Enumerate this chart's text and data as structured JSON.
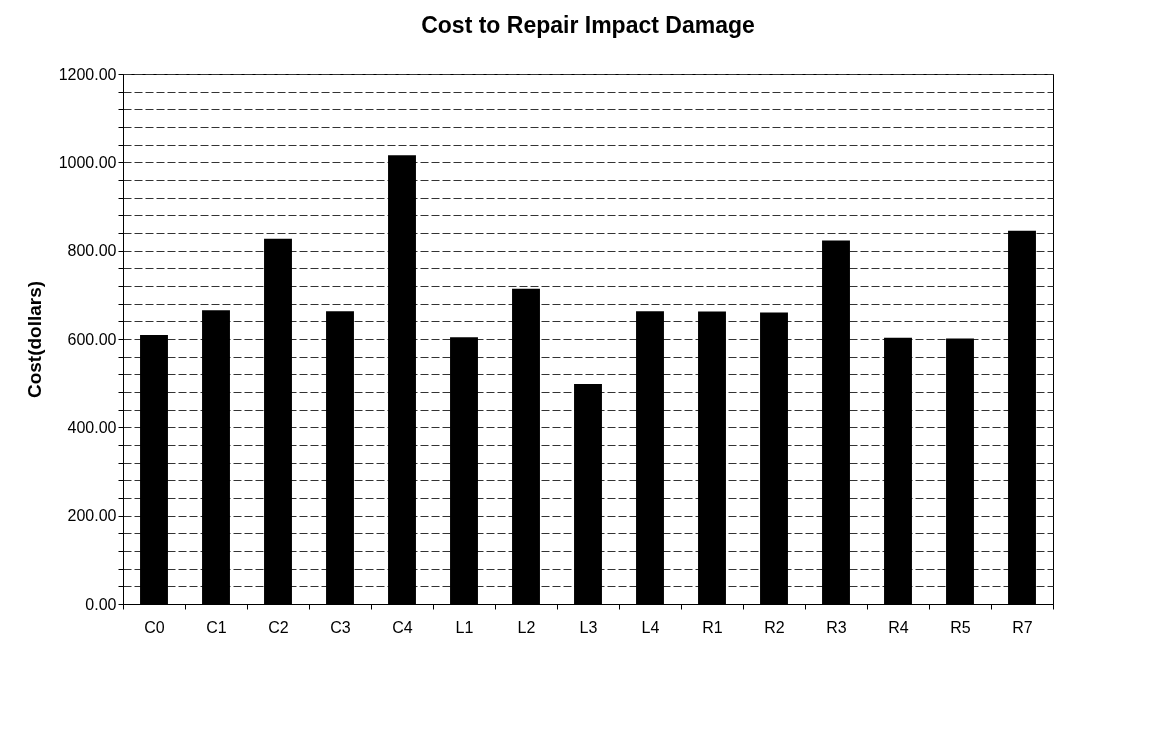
{
  "chart_data": {
    "type": "bar",
    "title": "Cost to Repair Impact Damage",
    "ylabel": "Cost(dollars)",
    "categories": [
      "C0",
      "C1",
      "C2",
      "C3",
      "C4",
      "L1",
      "L2",
      "L3",
      "L4",
      "R1",
      "R2",
      "R3",
      "R4",
      "R5",
      "R7"
    ],
    "values": [
      609,
      665,
      827,
      663,
      1016,
      604,
      714,
      498,
      663,
      662,
      660,
      823,
      603,
      601,
      845
    ],
    "color": "#000000",
    "ylim": [
      0,
      1200
    ],
    "yticks": [
      {
        "value": 0,
        "label": "0.00"
      },
      {
        "value": 40,
        "label": null
      },
      {
        "value": 80,
        "label": null
      },
      {
        "value": 120,
        "label": null
      },
      {
        "value": 160,
        "label": null
      },
      {
        "value": 200,
        "label": "200.00"
      },
      {
        "value": 240,
        "label": null
      },
      {
        "value": 280,
        "label": null
      },
      {
        "value": 320,
        "label": null
      },
      {
        "value": 360,
        "label": null
      },
      {
        "value": 400,
        "label": "400.00"
      },
      {
        "value": 440,
        "label": null
      },
      {
        "value": 480,
        "label": null
      },
      {
        "value": 520,
        "label": null
      },
      {
        "value": 560,
        "label": null
      },
      {
        "value": 600,
        "label": "600.00"
      },
      {
        "value": 640,
        "label": null
      },
      {
        "value": 680,
        "label": null
      },
      {
        "value": 720,
        "label": null
      },
      {
        "value": 760,
        "label": null
      },
      {
        "value": 800,
        "label": "800.00"
      },
      {
        "value": 840,
        "label": null
      },
      {
        "value": 880,
        "label": null
      },
      {
        "value": 920,
        "label": null
      },
      {
        "value": 960,
        "label": null
      },
      {
        "value": 1000,
        "label": "1000.00"
      },
      {
        "value": 1040,
        "label": null
      },
      {
        "value": 1080,
        "label": null
      },
      {
        "value": 1120,
        "label": null
      },
      {
        "value": 1160,
        "label": null
      },
      {
        "value": 1200,
        "label": "1200.00"
      }
    ],
    "grid": "y"
  }
}
